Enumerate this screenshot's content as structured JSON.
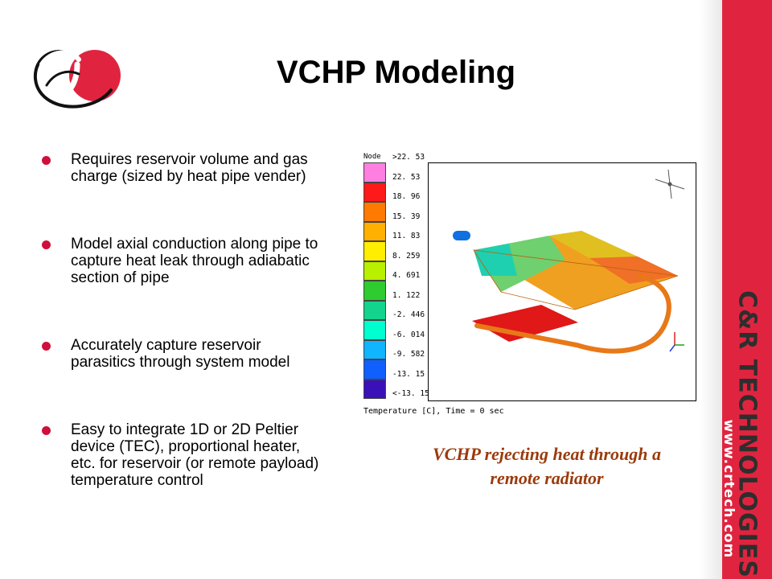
{
  "slide": {
    "title": "VCHP Modeling",
    "bullets": [
      "Requires reservoir volume and gas charge (sized by heat pipe vender)",
      "Model axial conduction along pipe to capture heat leak through adiabatic section of pipe",
      "Accurately capture reservoir parasitics through system model",
      "Easy to integrate 1D or 2D Peltier device (TEC), proportional heater, etc. for reservoir (or remote payload) temperature control"
    ],
    "caption": "VCHP rejecting heat through a remote radiator"
  },
  "figure": {
    "legend_title": "Node",
    "legend_labels": [
      ">22. 53",
      "22. 53",
      "18. 96",
      "15. 39",
      "11. 83",
      "8. 259",
      "4. 691",
      "1. 122",
      "-2. 446",
      "-6. 014",
      "-9. 582",
      "-13. 15",
      "<-13. 15"
    ],
    "legend_colors": [
      "#ff7fe0",
      "#ff1a1a",
      "#ff7a00",
      "#ffb000",
      "#ffee00",
      "#b8f000",
      "#2ecc2e",
      "#12d48c",
      "#00ffd0",
      "#10b4ff",
      "#1060ff",
      "#3a10b8"
    ],
    "caption": "Temperature [C], Time = 0 sec"
  },
  "brand": {
    "name": "C&R TECHNOLOGIES",
    "url": "www.crtech.com"
  },
  "colors": {
    "bar": "#e0243f",
    "bullet": "#d0103c",
    "caption": "#9b3a0c"
  }
}
